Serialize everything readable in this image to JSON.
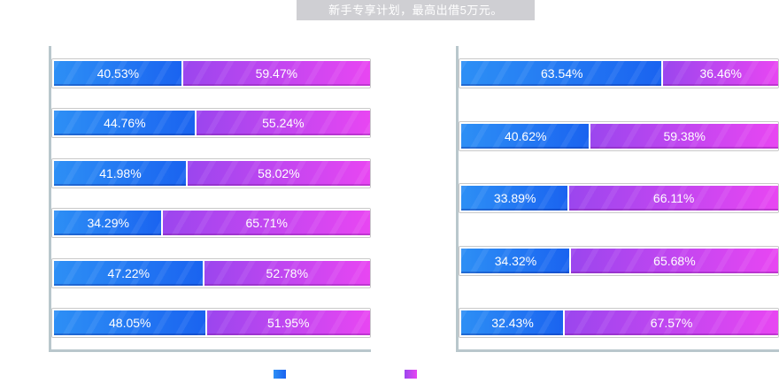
{
  "header": {
    "text": "新手专享计划，最高出借5万元。"
  },
  "colors": {
    "series_a": "#1f6ff2",
    "series_b": "#c646f0",
    "axis": "#b9c7cc",
    "banner_bg": "#cfcfd3"
  },
  "chart_data": [
    {
      "type": "bar",
      "orientation": "horizontal",
      "stacked": true,
      "title": "",
      "xlabel": "",
      "ylabel": "",
      "xlim": [
        0,
        100
      ],
      "grid": false,
      "legend": "bottom-center",
      "series": [
        {
          "values": [
            40.53,
            44.76,
            41.98,
            34.29,
            47.22,
            48.05
          ],
          "labels": [
            "40.53%",
            "44.76%",
            "41.98%",
            "34.29%",
            "47.22%",
            "48.05%"
          ]
        },
        {
          "values": [
            59.47,
            55.24,
            58.02,
            65.71,
            52.78,
            51.95
          ],
          "labels": [
            "59.47%",
            "55.24%",
            "58.02%",
            "65.71%",
            "52.78%",
            "51.95%"
          ]
        }
      ]
    },
    {
      "type": "bar",
      "orientation": "horizontal",
      "stacked": true,
      "title": "",
      "xlabel": "",
      "ylabel": "",
      "xlim": [
        0,
        100
      ],
      "grid": false,
      "legend": "bottom-center",
      "series": [
        {
          "values": [
            63.54,
            40.62,
            33.89,
            34.32,
            32.43
          ],
          "labels": [
            "63.54%",
            "40.62%",
            "33.89%",
            "34.32%",
            "32.43%"
          ]
        },
        {
          "values": [
            36.46,
            59.38,
            66.11,
            65.68,
            67.57
          ],
          "labels": [
            "36.46%",
            "59.38%",
            "66.11%",
            "65.68%",
            "67.57%"
          ]
        }
      ]
    }
  ]
}
